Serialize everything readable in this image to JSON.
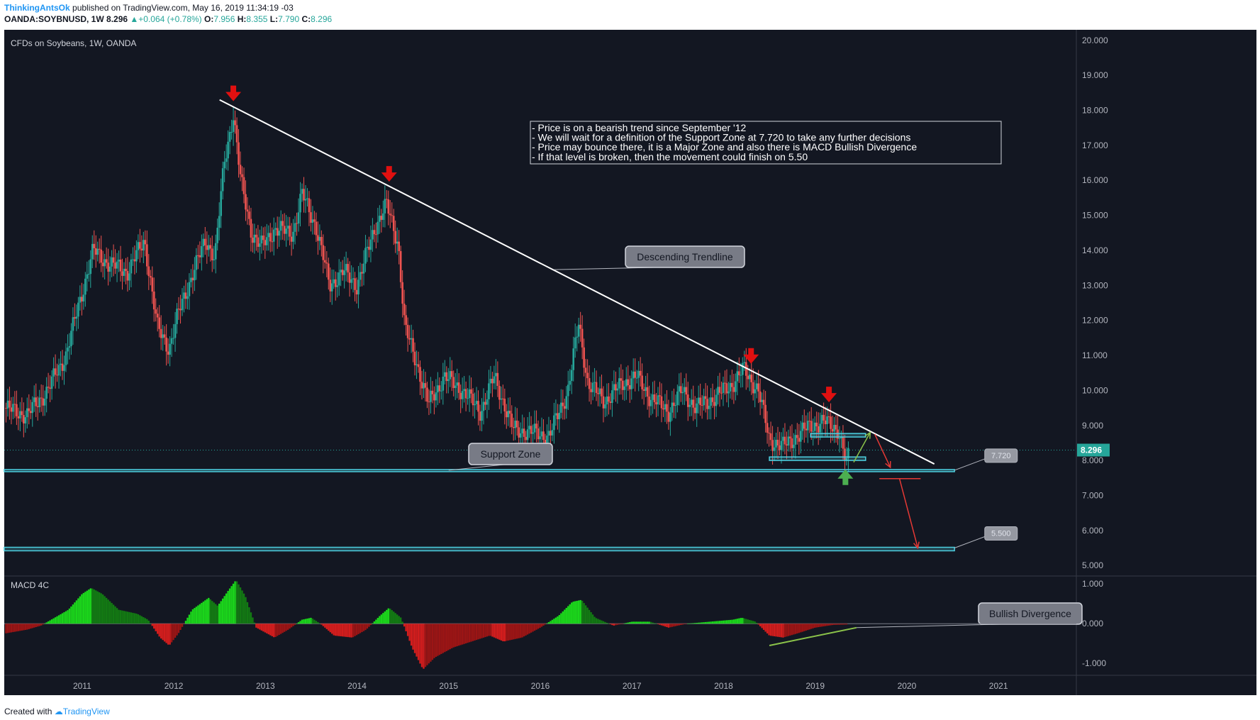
{
  "header": {
    "author": "ThinkingAntsOk",
    "published": "published on TradingView.com, May 16, 2019 11:34:19 -03",
    "symbol": "OANDA:SOYBNUSD, 1W",
    "last": "8.296",
    "change": "+0.064 (+0.78%)",
    "open_label": "O:",
    "open": "7.956",
    "high_label": "H:",
    "high": "8.355",
    "low_label": "L:",
    "low": "7.790",
    "close_label": "C:",
    "close": "8.296"
  },
  "footer": {
    "created": "Created with",
    "brand": "TradingView"
  },
  "colors": {
    "background": "#131722",
    "up": "#26a69a",
    "down": "#ef5350",
    "macd_up": "#1bd61b",
    "macd_down": "#d31d1d",
    "zone": "#4dd0e1",
    "arrow": "#ff1a1a"
  },
  "chart_data": [
    {
      "type": "candlestick",
      "title": "CFDs on Soybeans, 1W, OANDA",
      "xlabel": "",
      "ylabel": "",
      "x_ticks": [
        "2011",
        "2012",
        "2013",
        "2014",
        "2015",
        "2016",
        "2017",
        "2018",
        "2019",
        "2020",
        "2021"
      ],
      "y_ticks": [
        "5.000",
        "6.000",
        "7.000",
        "8.000",
        "9.000",
        "10.000",
        "11.000",
        "12.000",
        "13.000",
        "14.000",
        "15.000",
        "16.000",
        "17.000",
        "18.000",
        "19.000",
        "20.000"
      ],
      "ylim": [
        4.7,
        20.3
      ],
      "xlim": [
        2010.15,
        2021.85
      ],
      "last_price": "8.296",
      "price_path": [
        [
          2010.15,
          9.5
        ],
        [
          2010.4,
          9.3
        ],
        [
          2010.62,
          10.0
        ],
        [
          2010.82,
          11.0
        ],
        [
          2010.95,
          12.3
        ],
        [
          2011.12,
          14.0
        ],
        [
          2011.3,
          13.6
        ],
        [
          2011.5,
          13.4
        ],
        [
          2011.68,
          14.3
        ],
        [
          2011.82,
          11.8
        ],
        [
          2011.95,
          11.2
        ],
        [
          2012.05,
          12.2
        ],
        [
          2012.2,
          13.3
        ],
        [
          2012.35,
          14.3
        ],
        [
          2012.45,
          13.8
        ],
        [
          2012.55,
          16.5
        ],
        [
          2012.65,
          17.9
        ],
        [
          2012.73,
          16.0
        ],
        [
          2012.85,
          14.5
        ],
        [
          2012.95,
          14.1
        ],
        [
          2013.1,
          14.6
        ],
        [
          2013.3,
          14.5
        ],
        [
          2013.4,
          15.6
        ],
        [
          2013.55,
          14.7
        ],
        [
          2013.7,
          13.0
        ],
        [
          2013.85,
          13.4
        ],
        [
          2014.0,
          13.0
        ],
        [
          2014.2,
          14.7
        ],
        [
          2014.32,
          15.3
        ],
        [
          2014.45,
          14.2
        ],
        [
          2014.52,
          11.8
        ],
        [
          2014.65,
          10.8
        ],
        [
          2014.78,
          9.6
        ],
        [
          2014.95,
          10.4
        ],
        [
          2015.15,
          10.0
        ],
        [
          2015.35,
          9.4
        ],
        [
          2015.5,
          10.4
        ],
        [
          2015.7,
          8.9
        ],
        [
          2015.9,
          8.8
        ],
        [
          2016.1,
          8.7
        ],
        [
          2016.3,
          10.0
        ],
        [
          2016.42,
          11.9
        ],
        [
          2016.52,
          10.2
        ],
        [
          2016.7,
          9.7
        ],
        [
          2016.9,
          10.2
        ],
        [
          2017.05,
          10.4
        ],
        [
          2017.2,
          9.8
        ],
        [
          2017.4,
          9.4
        ],
        [
          2017.55,
          10.0
        ],
        [
          2017.7,
          9.5
        ],
        [
          2017.9,
          9.8
        ],
        [
          2018.1,
          10.2
        ],
        [
          2018.22,
          10.6
        ],
        [
          2018.38,
          10.0
        ],
        [
          2018.5,
          8.6
        ],
        [
          2018.65,
          8.4
        ],
        [
          2018.8,
          8.7
        ],
        [
          2018.95,
          9.0
        ],
        [
          2019.1,
          9.1
        ],
        [
          2019.25,
          8.9
        ],
        [
          2019.35,
          7.8
        ],
        [
          2019.37,
          8.3
        ]
      ],
      "trendline": [
        [
          2012.5,
          18.3
        ],
        [
          2020.3,
          7.9
        ]
      ],
      "trendline_peaks": [
        [
          2012.65,
          18.1
        ],
        [
          2014.35,
          15.8
        ],
        [
          2018.3,
          10.6
        ],
        [
          2019.15,
          9.5
        ]
      ],
      "support_zone": [
        7.68,
        7.74
      ],
      "target_zone": [
        5.42,
        5.52
      ],
      "small_zones": [
        {
          "x": [
            2018.5,
            2019.55
          ],
          "y": [
            8.0,
            8.1
          ]
        },
        {
          "x": [
            2018.95,
            2019.55
          ],
          "y": [
            8.67,
            8.77
          ]
        }
      ],
      "projection_up": [
        [
          2019.42,
          7.95
        ],
        [
          2019.6,
          8.8
        ]
      ],
      "projection_down": [
        [
          2019.65,
          8.75
        ],
        [
          2019.82,
          7.8
        ]
      ],
      "break_line": {
        "x": [
          2019.7,
          2020.15
        ],
        "y": 7.48
      },
      "break_arrow": [
        [
          2019.92,
          7.48
        ],
        [
          2020.12,
          5.5
        ]
      ],
      "bullish_arrow": [
        2019.33,
        7.5
      ],
      "price_labels": [
        "7.720",
        "5.500"
      ],
      "annotations": [
        "Descending Trendline",
        "Support Zone",
        "Bullish Divergence"
      ],
      "notes": [
        "- Price is on a bearish trend since September '12",
        "- We will wait for a definition of the Support Zone at 7.720 to take any further decisions",
        "- Price may bounce there, it is a Major Zone and also there is MACD Bullish Divergence",
        "- If that level is broken, then the movement could finish on 5.50"
      ]
    },
    {
      "type": "bar",
      "title": "MACD 4C",
      "ylim": [
        -1.3,
        1.2
      ],
      "y_ticks": [
        "1.000",
        "0.000",
        "-1.000"
      ],
      "histogram_path": [
        [
          2010.15,
          -0.25
        ],
        [
          2010.4,
          -0.15
        ],
        [
          2010.55,
          -0.05
        ],
        [
          2010.7,
          0.15
        ],
        [
          2010.85,
          0.35
        ],
        [
          2011.0,
          0.75
        ],
        [
          2011.1,
          0.9
        ],
        [
          2011.22,
          0.75
        ],
        [
          2011.4,
          0.35
        ],
        [
          2011.6,
          0.25
        ],
        [
          2011.72,
          0.1
        ],
        [
          2011.85,
          -0.35
        ],
        [
          2011.95,
          -0.55
        ],
        [
          2012.05,
          -0.25
        ],
        [
          2012.2,
          0.35
        ],
        [
          2012.38,
          0.65
        ],
        [
          2012.48,
          0.45
        ],
        [
          2012.6,
          0.85
        ],
        [
          2012.68,
          1.1
        ],
        [
          2012.78,
          0.7
        ],
        [
          2012.9,
          -0.1
        ],
        [
          2013.1,
          -0.35
        ],
        [
          2013.25,
          -0.15
        ],
        [
          2013.4,
          0.1
        ],
        [
          2013.5,
          0.15
        ],
        [
          2013.6,
          0.0
        ],
        [
          2013.75,
          -0.3
        ],
        [
          2013.95,
          -0.35
        ],
        [
          2014.1,
          -0.15
        ],
        [
          2014.25,
          0.2
        ],
        [
          2014.35,
          0.4
        ],
        [
          2014.48,
          0.15
        ],
        [
          2014.6,
          -0.6
        ],
        [
          2014.72,
          -1.15
        ],
        [
          2014.85,
          -0.85
        ],
        [
          2015.05,
          -0.6
        ],
        [
          2015.25,
          -0.45
        ],
        [
          2015.45,
          -0.3
        ],
        [
          2015.6,
          -0.45
        ],
        [
          2015.8,
          -0.35
        ],
        [
          2016.0,
          -0.1
        ],
        [
          2016.2,
          0.2
        ],
        [
          2016.35,
          0.55
        ],
        [
          2016.45,
          0.6
        ],
        [
          2016.6,
          0.15
        ],
        [
          2016.8,
          -0.05
        ],
        [
          2017.0,
          0.05
        ],
        [
          2017.2,
          0.05
        ],
        [
          2017.4,
          -0.1
        ],
        [
          2017.6,
          0.0
        ],
        [
          2017.85,
          0.05
        ],
        [
          2018.1,
          0.1
        ],
        [
          2018.2,
          0.15
        ],
        [
          2018.35,
          0.05
        ],
        [
          2018.5,
          -0.3
        ],
        [
          2018.65,
          -0.35
        ],
        [
          2018.8,
          -0.25
        ],
        [
          2019.0,
          -0.1
        ],
        [
          2019.2,
          -0.03
        ],
        [
          2019.36,
          -0.02
        ]
      ],
      "divergence_line": [
        [
          2018.5,
          -0.55
        ],
        [
          2019.45,
          -0.1
        ]
      ]
    }
  ]
}
